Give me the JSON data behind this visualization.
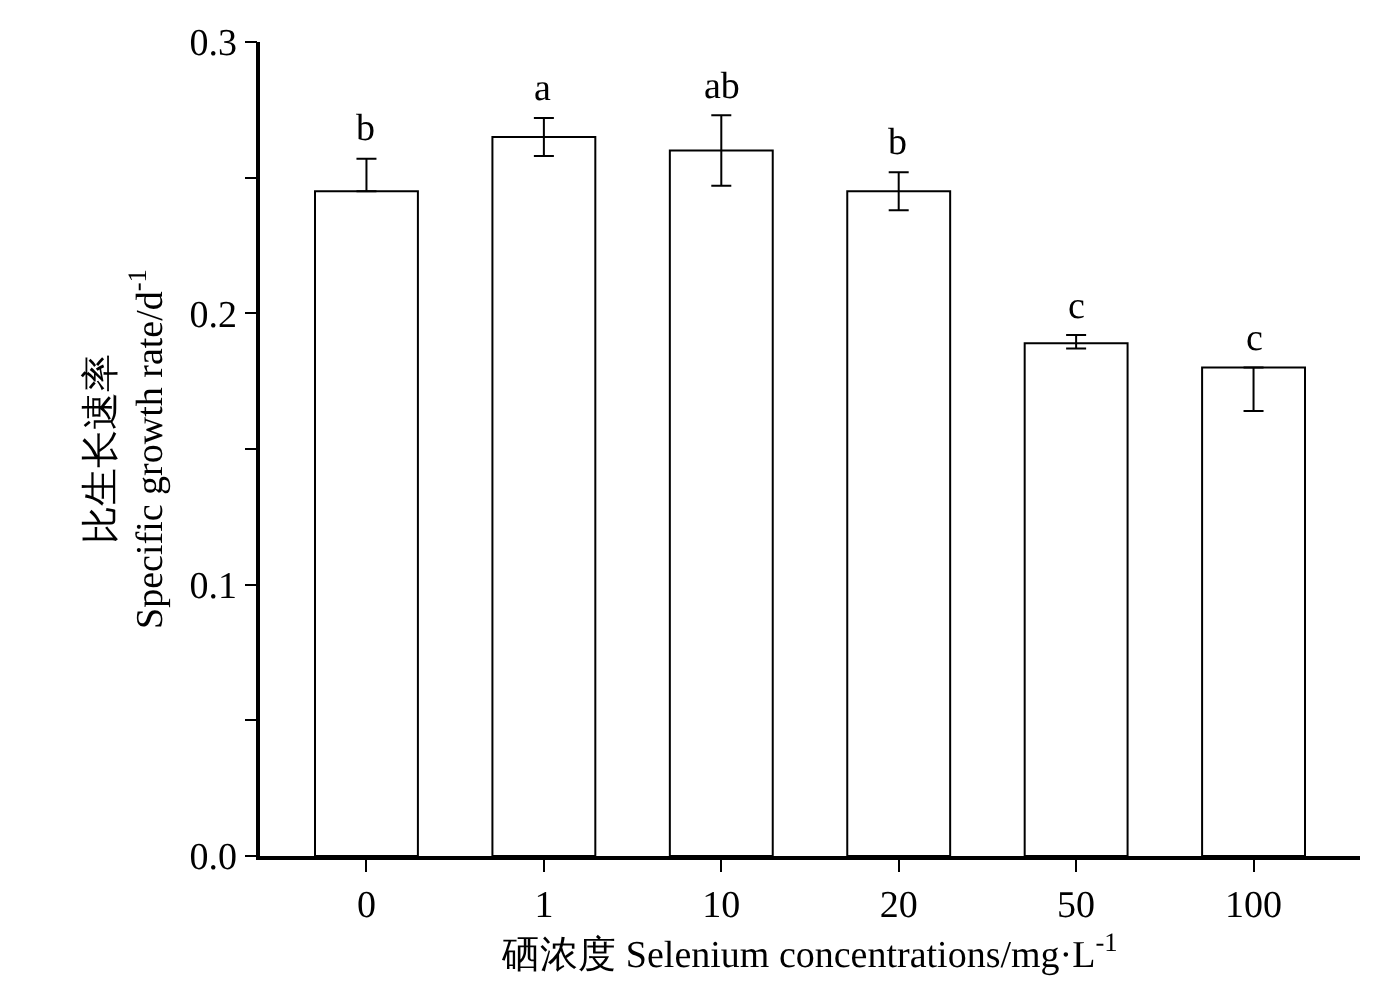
{
  "chart_data": {
    "type": "bar",
    "xlabel": "硒浓度 Selenium concentrations/mg·L$^{-1}$",
    "ylabel": "比生长速率\nSpecific growth rate/d$^{-1}$",
    "categories": [
      "0",
      "1",
      "10",
      "20",
      "50",
      "100"
    ],
    "values": [
      0.245,
      0.265,
      0.26,
      0.245,
      0.189,
      0.18
    ],
    "color": "#ffffff",
    "errors": [
      [
        0.245,
        0.257
      ],
      [
        0.258,
        0.272
      ],
      [
        0.247,
        0.273
      ],
      [
        0.238,
        0.252
      ],
      [
        0.187,
        0.192
      ],
      [
        0.164,
        0.18
      ]
    ],
    "ylim": [
      0,
      0.3
    ],
    "yticks": [
      {
        "value": 0,
        "label": "0.0"
      },
      {
        "value": 0.05,
        "label": null
      },
      0.1,
      {
        "value": 0.15,
        "label": null
      },
      0.2,
      {
        "value": 0.25,
        "label": null
      },
      0.3
    ],
    "annotations": [
      {
        "text": "b",
        "x": "0",
        "y": 0.257
      },
      {
        "text": "a",
        "x": "1",
        "y": 0.272
      },
      {
        "text": "ab",
        "x": "10",
        "y": 0.273
      },
      {
        "text": "b",
        "x": "20",
        "y": 0.252
      },
      {
        "text": "c",
        "x": "50",
        "y": 0.192
      },
      {
        "text": "c",
        "x": "100",
        "y": 0.18
      }
    ]
  }
}
